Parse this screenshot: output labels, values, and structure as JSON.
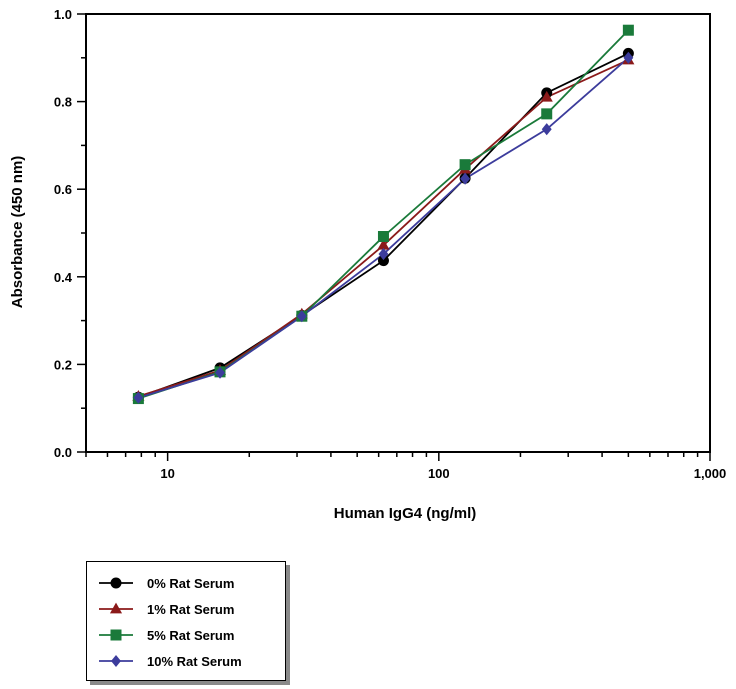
{
  "chart_data": {
    "type": "line",
    "xlabel": "Human IgG4 (ng/ml)",
    "ylabel": "Absorbance (450 nm)",
    "xscale": "log",
    "xlim": [
      5,
      1000
    ],
    "ylim": [
      0,
      1.0
    ],
    "xticks": [
      10,
      100,
      1000
    ],
    "xtick_labels": [
      "10",
      "100",
      "1,000"
    ],
    "yticks": [
      0,
      0.2,
      0.4,
      0.6,
      0.8,
      1.0
    ],
    "ytick_labels": [
      "0.0",
      "0.2",
      "0.4",
      "0.6",
      "0.8",
      "1.0"
    ],
    "grid": false,
    "legend_position": "bottom-left, below plot",
    "x": [
      7.8,
      15.6,
      31.25,
      62.5,
      125,
      250,
      500
    ],
    "series": [
      {
        "name": "0% Rat Serum",
        "color": "#000000",
        "marker": "circle",
        "values": [
          0.125,
          0.192,
          0.312,
          0.437,
          0.625,
          0.82,
          0.91
        ]
      },
      {
        "name": "1% Rat Serum",
        "color": "#8b1a1a",
        "marker": "triangle",
        "values": [
          0.127,
          0.186,
          0.315,
          0.472,
          0.646,
          0.81,
          0.895
        ]
      },
      {
        "name": "5% Rat Serum",
        "color": "#1a7a3a",
        "marker": "square",
        "values": [
          0.122,
          0.183,
          0.31,
          0.492,
          0.656,
          0.772,
          0.963
        ]
      },
      {
        "name": "10% Rat Serum",
        "color": "#3c3c9c",
        "marker": "diamond",
        "values": [
          0.124,
          0.181,
          0.31,
          0.452,
          0.624,
          0.737,
          0.9
        ]
      }
    ]
  }
}
